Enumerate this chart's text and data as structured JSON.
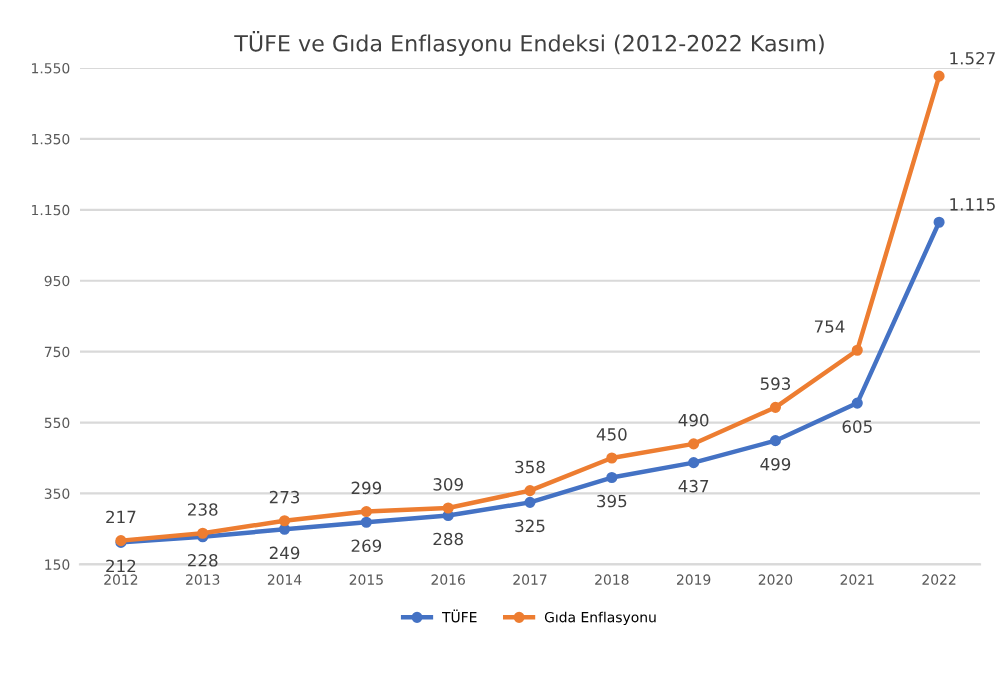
{
  "chart_data": {
    "type": "line",
    "title": "TÜFE ve Gıda Enflasyonu Endeksi (2012-2022 Kasım)",
    "categories": [
      "2012",
      "2013",
      "2014",
      "2015",
      "2016",
      "2017",
      "2018",
      "2019",
      "2020",
      "2021",
      "2022"
    ],
    "series": [
      {
        "name": "TÜFE",
        "color": "#4472c4",
        "values": [
          212,
          228,
          249,
          269,
          288,
          325,
          395,
          437,
          499,
          605,
          1115
        ],
        "value_labels": [
          "212",
          "228",
          "249",
          "269",
          "288",
          "325",
          "395",
          "437",
          "499",
          "605",
          "1.115"
        ]
      },
      {
        "name": "Gıda Enflasyonu",
        "color": "#ed7d31",
        "values": [
          217,
          238,
          273,
          299,
          309,
          358,
          450,
          490,
          593,
          754,
          1527
        ],
        "value_labels": [
          "217",
          "238",
          "273",
          "299",
          "309",
          "358",
          "450",
          "490",
          "593",
          "754",
          "1.527"
        ]
      }
    ],
    "ylim": [
      150,
      1550
    ],
    "yticks": [
      150,
      350,
      550,
      750,
      950,
      {
        "value": 1150,
        "label": "1.150"
      },
      {
        "value": 1350,
        "label": "1.350"
      },
      {
        "value": 1550,
        "label": "1.550"
      }
    ],
    "grid": "y",
    "legend": "bottom",
    "marker": "circle",
    "line_style": "solid"
  }
}
